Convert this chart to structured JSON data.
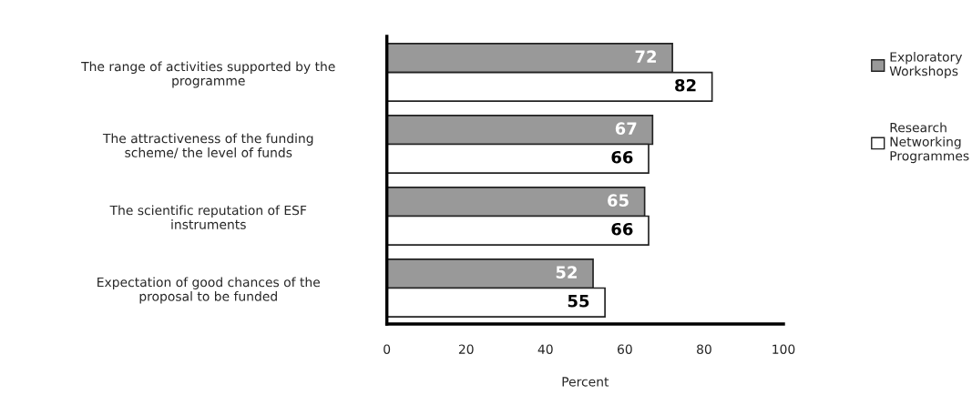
{
  "chart_data": {
    "type": "bar",
    "orientation": "horizontal",
    "xlabel": "Percent",
    "categories": [
      "The range of activities supported by the programme",
      "The attractiveness of the funding scheme/ the level of funds",
      "The scientific reputation of ESF instruments",
      "Expectation of good chances of the proposal to be funded"
    ],
    "series": [
      {
        "name": "Exploratory Workshops",
        "color": "#999999",
        "values": [
          72,
          67,
          65,
          52
        ]
      },
      {
        "name": "Research Networking Programmes",
        "color": "#ffffff",
        "values": [
          82,
          66,
          66,
          55
        ]
      }
    ],
    "xlim": [
      0,
      100
    ],
    "xticks": [
      0,
      20,
      40,
      60,
      80,
      100
    ],
    "data_labels": true,
    "legend": "right",
    "grid": false
  }
}
